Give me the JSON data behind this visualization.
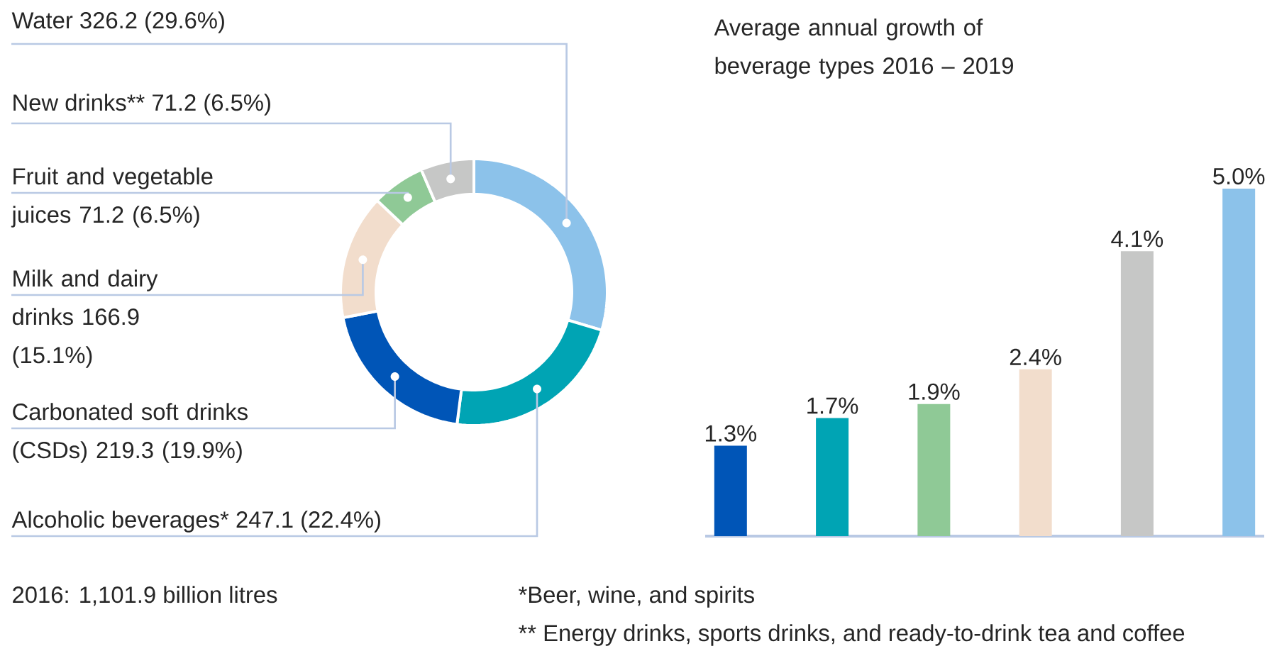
{
  "chart_data": [
    {
      "type": "donut",
      "categories": [
        "Water",
        "Alcoholic beverages*",
        "Carbonated soft drinks (CSDs)",
        "Milk and dairy drinks",
        "Fruit and vegetable juices",
        "New drinks**"
      ],
      "values": [
        326.2,
        247.1,
        219.3,
        166.9,
        71.2,
        71.2
      ],
      "value_labels": [
        "326.2 (29.6%)",
        "247.1 (22.4%)",
        "219.3 (19.9%)",
        "166.9 (15.1%)",
        "71.2 (6.5%)",
        "71.2 (6.5%)"
      ],
      "colors": [
        "#8cc2ea",
        "#00a4b4",
        "#0055b7",
        "#f2ddcc",
        "#8fc996",
        "#c6c7c6"
      ],
      "annotations": [
        "2016: 1,101.9 billion litres",
        "*Beer, wine, and spirits",
        "** Energy drinks, sports drinks, and ready-to-drink tea and coffee"
      ]
    },
    {
      "type": "bar",
      "title": "Average annual growth of beverage types 2016 – 2019",
      "categories": [
        null,
        null,
        null,
        null,
        null,
        null
      ],
      "values": [
        1.3,
        1.7,
        1.9,
        2.4,
        4.1,
        5.0
      ],
      "value_labels": [
        "1.3%",
        "1.7%",
        "1.9%",
        "2.4%",
        "4.1%",
        "5.0%"
      ],
      "colors": [
        "#0055b7",
        "#00a4b4",
        "#8fc996",
        "#f2ddcc",
        "#c6c7c6",
        "#8cc2ea"
      ]
    }
  ]
}
